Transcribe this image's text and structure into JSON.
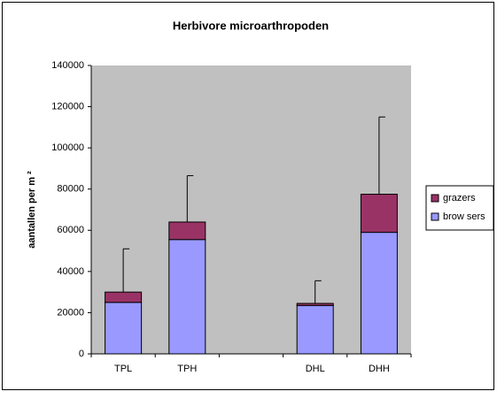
{
  "chart_data": {
    "type": "bar",
    "stacked": true,
    "title": "Herbivore microarthropoden",
    "y_label": "aantallen per m ²",
    "categories": [
      "TPL",
      "TPH",
      null,
      "DHL",
      "DHH"
    ],
    "series": [
      {
        "name": "brow sers",
        "color": "#9999ff",
        "values": [
          25000,
          55500,
          null,
          23500,
          59000
        ]
      },
      {
        "name": "grazers",
        "color": "#993366",
        "values": [
          5000,
          8500,
          null,
          1000,
          18500
        ],
        "errors": [
          21000,
          22500,
          null,
          11000,
          37500
        ]
      }
    ],
    "ylim": [
      0,
      140000
    ],
    "yticks": [
      0,
      20000,
      40000,
      60000,
      80000,
      100000,
      120000,
      140000
    ],
    "grid": false,
    "plot_background": "#c0c0c0",
    "legend": "right"
  }
}
